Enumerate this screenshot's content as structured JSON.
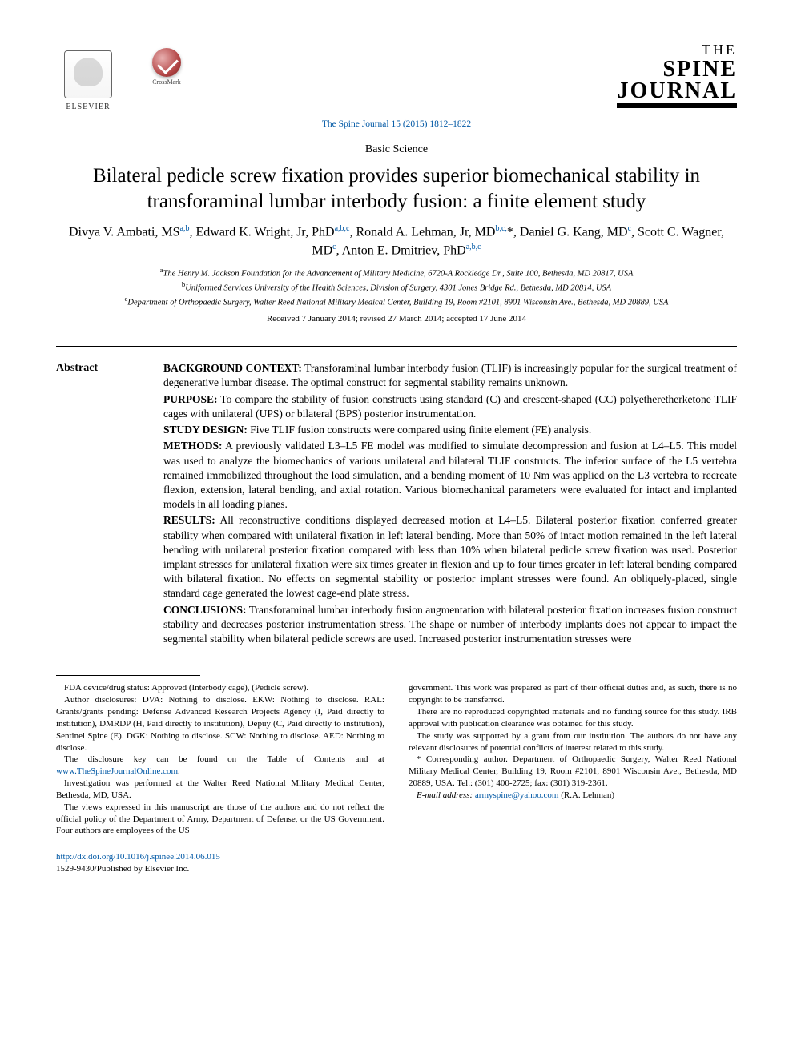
{
  "publisher": {
    "name": "ELSEVIER"
  },
  "crossmark": {
    "label": "CrossMark"
  },
  "journal_logo": {
    "the": "THE",
    "line1": "SPINE",
    "line2": "JOURNAL"
  },
  "citation": "The Spine Journal 15 (2015) 1812–1822",
  "article_type": "Basic Science",
  "title": "Bilateral pedicle screw fixation provides superior biomechanical stability in transforaminal lumbar interbody fusion: a finite element study",
  "authors_html": "Divya V. Ambati, MS<sup>a,b</sup>, Edward K. Wright, Jr, PhD<sup>a,b,c</sup>, Ronald A. Lehman, Jr, MD<sup>b,c,</sup>*, Daniel G. Kang, MD<sup>c</sup>, Scott C. Wagner, MD<sup>c</sup>, Anton E. Dmitriev, PhD<sup>a,b,c</sup>",
  "affiliations": {
    "a": "The Henry M. Jackson Foundation for the Advancement of Military Medicine, 6720-A Rockledge Dr., Suite 100, Bethesda, MD 20817, USA",
    "b": "Uniformed Services University of the Health Sciences, Division of Surgery, 4301 Jones Bridge Rd., Bethesda, MD 20814, USA",
    "c": "Department of Orthopaedic Surgery, Walter Reed National Military Medical Center, Building 19, Room #2101, 8901 Wisconsin Ave., Bethesda, MD 20889, USA"
  },
  "dates": "Received 7 January 2014; revised 27 March 2014; accepted 17 June 2014",
  "abstract_label": "Abstract",
  "abstract": {
    "background": {
      "label": "BACKGROUND CONTEXT:",
      "text": "Transforaminal lumbar interbody fusion (TLIF) is increasingly popular for the surgical treatment of degenerative lumbar disease. The optimal construct for segmental stability remains unknown."
    },
    "purpose": {
      "label": "PURPOSE:",
      "text": "To compare the stability of fusion constructs using standard (C) and crescent-shaped (CC) polyetheretherketone TLIF cages with unilateral (UPS) or bilateral (BPS) posterior instrumentation."
    },
    "design": {
      "label": "STUDY DESIGN:",
      "text": "Five TLIF fusion constructs were compared using finite element (FE) analysis."
    },
    "methods": {
      "label": "METHODS:",
      "text": "A previously validated L3–L5 FE model was modified to simulate decompression and fusion at L4–L5. This model was used to analyze the biomechanics of various unilateral and bilateral TLIF constructs. The inferior surface of the L5 vertebra remained immobilized throughout the load simulation, and a bending moment of 10 Nm was applied on the L3 vertebra to recreate flexion, extension, lateral bending, and axial rotation. Various biomechanical parameters were evaluated for intact and implanted models in all loading planes."
    },
    "results": {
      "label": "RESULTS:",
      "text": "All reconstructive conditions displayed decreased motion at L4–L5. Bilateral posterior fixation conferred greater stability when compared with unilateral fixation in left lateral bending. More than 50% of intact motion remained in the left lateral bending with unilateral posterior fixation compared with less than 10% when bilateral pedicle screw fixation was used. Posterior implant stresses for unilateral fixation were six times greater in flexion and up to four times greater in left lateral bending compared with bilateral fixation. No effects on segmental stability or posterior implant stresses were found. An obliquely-placed, single standard cage generated the lowest cage-end plate stress."
    },
    "conclusions": {
      "label": "CONCLUSIONS:",
      "text": "Transforaminal lumbar interbody fusion augmentation with bilateral posterior fixation increases fusion construct stability and decreases posterior instrumentation stress. The shape or number of interbody implants does not appear to impact the segmental stability when bilateral pedicle screws are used. Increased posterior instrumentation stresses were"
    }
  },
  "footnotes": {
    "left": [
      "FDA device/drug status: Approved (Interbody cage), (Pedicle screw).",
      "Author disclosures: DVA: Nothing to disclose. EKW: Nothing to disclose. RAL: Grants/grants pending: Defense Advanced Research Projects Agency (I, Paid directly to institution), DMRDP (H, Paid directly to institution), Depuy (C, Paid directly to institution), Sentinel Spine (E). DGK: Nothing to disclose. SCW: Nothing to disclose. AED: Nothing to disclose.",
      "The disclosure key can be found on the Table of Contents and at ",
      "Investigation was performed at the Walter Reed National Military Medical Center, Bethesda, MD, USA.",
      "The views expressed in this manuscript are those of the authors and do not reflect the official policy of the Department of Army, Department of Defense, or the US Government. Four authors are employees of the US"
    ],
    "disclosure_link": "www.TheSpineJournalOnline.com",
    "right": [
      "government. This work was prepared as part of their official duties and, as such, there is no copyright to be transferred.",
      "There are no reproduced copyrighted materials and no funding source for this study. IRB approval with publication clearance was obtained for this study.",
      "The study was supported by a grant from our institution. The authors do not have any relevant disclosures of potential conflicts of interest related to this study.",
      "* Corresponding author. Department of Orthopaedic Surgery, Walter Reed National Military Medical Center, Building 19, Room #2101, 8901 Wisconsin Ave., Bethesda, MD 20889, USA. Tel.: (301) 400-2725; fax: (301) 319-2361."
    ],
    "email_label": "E-mail address:",
    "email": "armyspine@yahoo.com",
    "email_attribution": "(R.A. Lehman)"
  },
  "footer": {
    "doi": "http://dx.doi.org/10.1016/j.spinee.2014.06.015",
    "issn_copyright": "1529-9430/Published by Elsevier Inc."
  },
  "colors": {
    "link": "#0058a5",
    "text": "#000000",
    "background": "#ffffff"
  }
}
